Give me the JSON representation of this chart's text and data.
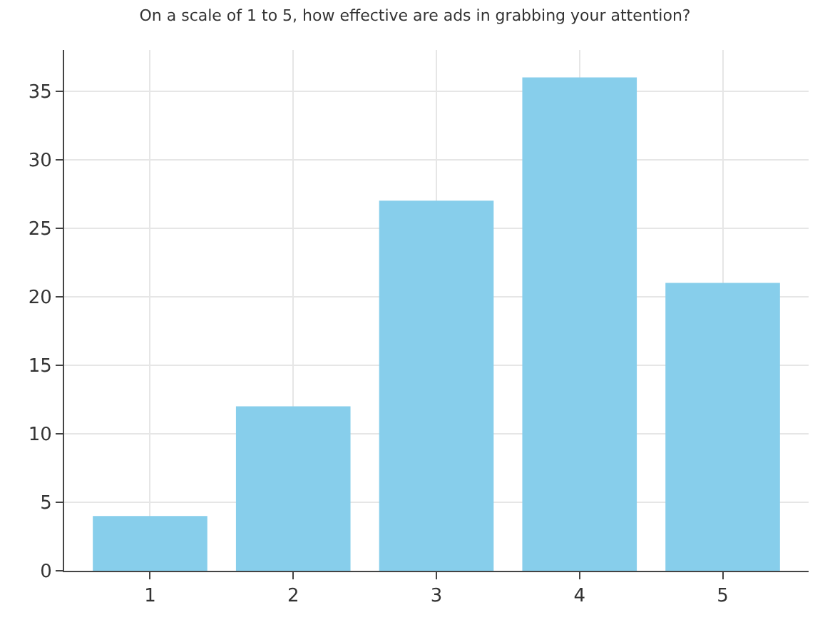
{
  "chart_data": {
    "type": "bar",
    "title": "On a scale of 1 to 5, how effective are ads in grabbing your attention?",
    "categories": [
      "1",
      "2",
      "3",
      "4",
      "5"
    ],
    "values": [
      4,
      12,
      27,
      36,
      21
    ],
    "color": "#87ceeb",
    "ylim": [
      0,
      38
    ],
    "yticks": [
      0,
      5,
      10,
      15,
      20,
      25,
      30,
      35
    ],
    "grid": true
  }
}
